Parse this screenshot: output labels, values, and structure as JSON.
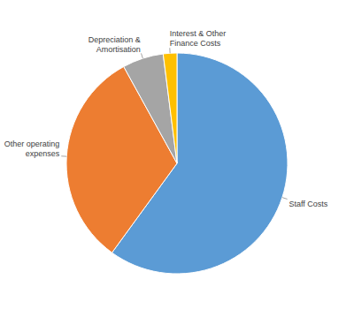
{
  "chart_data": {
    "type": "pie",
    "categories": [
      "Staff Costs",
      "Other operating expenses",
      "Depreciation & Amortisation",
      "Interest & Other Finance Costs"
    ],
    "values": [
      60,
      32,
      6,
      2
    ],
    "colors": [
      "#5b9bd5",
      "#ed7d31",
      "#a5a5a5",
      "#ffc000"
    ]
  }
}
